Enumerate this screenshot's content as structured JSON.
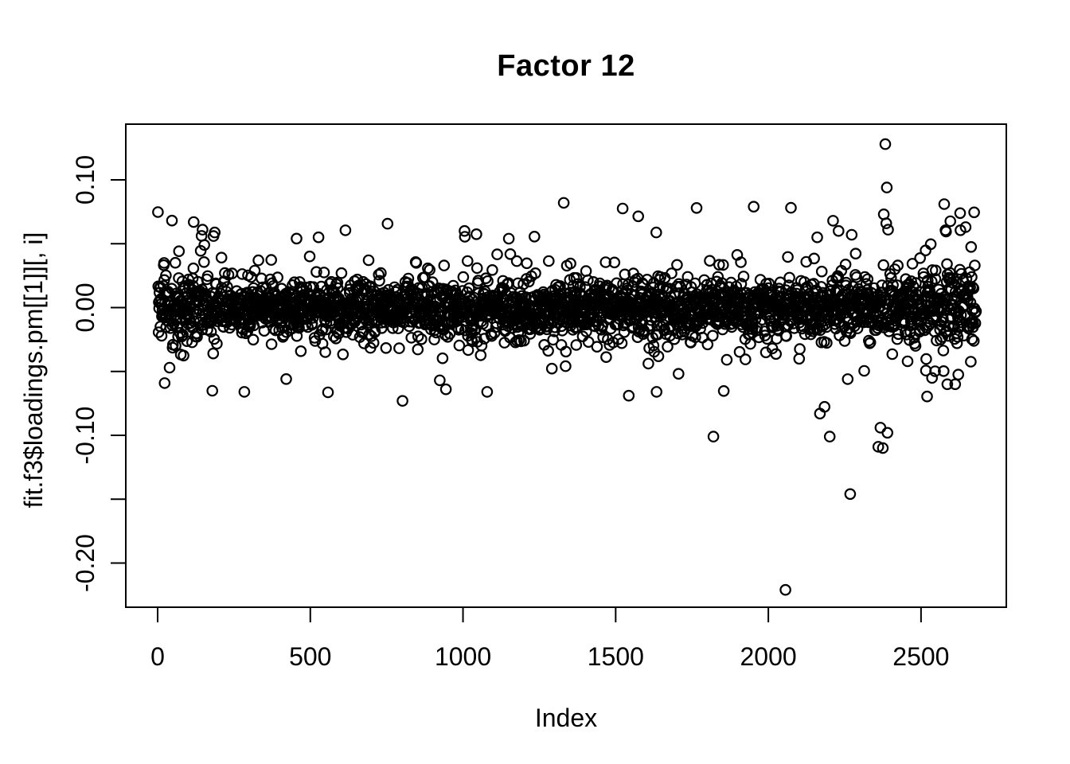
{
  "title": "Factor 12",
  "axes": {
    "x": {
      "label": "Index"
    },
    "y": {
      "label": "fit.f3$loadings.pm[[1]][, i]"
    }
  },
  "colors": {
    "background": "#ffffff",
    "foreground": "#000000"
  },
  "chart_data": {
    "type": "scatter",
    "title": "Factor 12",
    "xlabel": "Index",
    "ylabel": "fit.f3$loadings.pm[[1]][, i]",
    "n_points": 2680,
    "x_start": 1,
    "xlim": [
      -107,
      2787
    ],
    "ylim": [
      -0.2386,
      0.1466
    ],
    "x_ticks": [
      {
        "value": 0,
        "label": "0"
      },
      {
        "value": 500,
        "label": "500"
      },
      {
        "value": 1000,
        "label": "1000"
      },
      {
        "value": 1500,
        "label": "1500"
      },
      {
        "value": 2000,
        "label": "2000"
      },
      {
        "value": 2500,
        "label": "2500"
      }
    ],
    "y_ticks": [
      {
        "value": 0.1,
        "label": "0.10"
      },
      {
        "value": 0.05,
        "label": ""
      },
      {
        "value": 0.0,
        "label": "0.00"
      },
      {
        "value": -0.05,
        "label": ""
      },
      {
        "value": -0.1,
        "label": "-0.10"
      },
      {
        "value": -0.15,
        "label": ""
      },
      {
        "value": -0.2,
        "label": "-0.20"
      }
    ],
    "grid": false,
    "legend": "none",
    "marker": {
      "shape": "open-circle",
      "color": "#000000",
      "radius_px": 6.2,
      "stroke_px": 2.2
    },
    "band_distribution": {
      "description": "dense noise band centered on 0",
      "seed": 7,
      "mixture": [
        {
          "weight": 0.79,
          "sd": 0.0105
        },
        {
          "weight": 0.155,
          "sd": 0.019
        },
        {
          "weight": 0.045,
          "sd": 0.033
        },
        {
          "weight": 0.01,
          "sd": 0.05
        }
      ],
      "clamp_abs": 0.085,
      "edge_flare": {
        "left_n": 130,
        "left_mult": 1.4,
        "right_start": 2450,
        "right_mult": 1.6
      }
    },
    "outliers": [
      [
        118,
        0.067
      ],
      [
        147,
        0.061
      ],
      [
        183,
        0.056
      ],
      [
        284,
        -0.066
      ],
      [
        455,
        0.054
      ],
      [
        527,
        0.055
      ],
      [
        944,
        -0.064
      ],
      [
        1005,
        0.06
      ],
      [
        1079,
        -0.066
      ],
      [
        1330,
        0.082
      ],
      [
        1543,
        -0.069
      ],
      [
        1634,
        -0.066
      ],
      [
        1765,
        0.078
      ],
      [
        1820,
        -0.101
      ],
      [
        1952,
        0.079
      ],
      [
        2056,
        -0.221
      ],
      [
        2160,
        0.055
      ],
      [
        2169,
        -0.083
      ],
      [
        2201,
        -0.101
      ],
      [
        2212,
        0.068
      ],
      [
        2230,
        0.06
      ],
      [
        2260,
        -0.056
      ],
      [
        2268,
        -0.146
      ],
      [
        2273,
        0.057
      ],
      [
        2360,
        -0.109
      ],
      [
        2367,
        -0.094
      ],
      [
        2375,
        -0.11
      ],
      [
        2378,
        0.073
      ],
      [
        2383,
        0.128
      ],
      [
        2386,
        0.066
      ],
      [
        2388,
        0.094
      ],
      [
        2390,
        -0.098
      ],
      [
        2392,
        0.061
      ],
      [
        2586,
        -0.06
      ],
      [
        2612,
        -0.06
      ],
      [
        2646,
        0.063
      ]
    ]
  }
}
